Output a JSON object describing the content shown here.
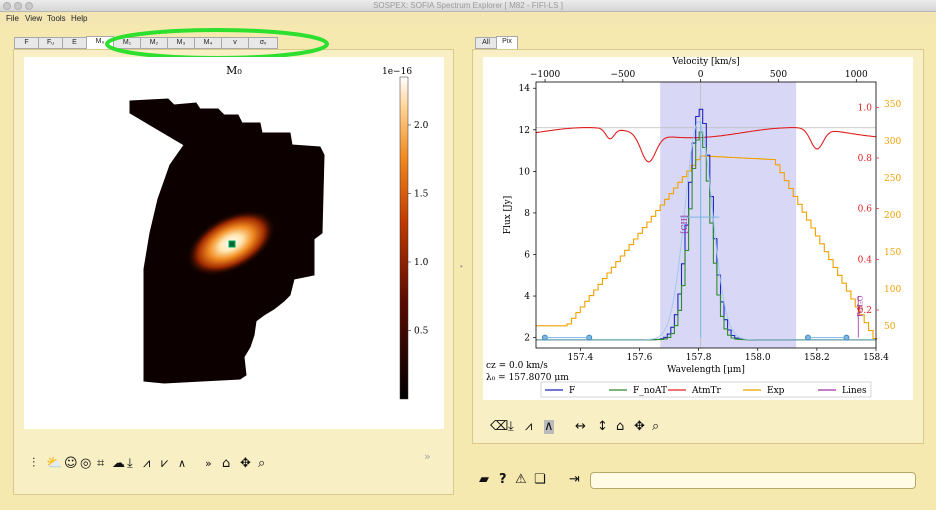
{
  "window": {
    "title": "SOSPEX: SOFIA Spectrum Explorer [ M82 - FIFI-LS ]"
  },
  "menu": [
    "File",
    "View",
    "Tools",
    "Help"
  ],
  "left_tabs": [
    {
      "label": "F",
      "active": false
    },
    {
      "label": "Fᵤ",
      "active": false
    },
    {
      "label": "E",
      "active": false
    },
    {
      "label": "M₀",
      "active": true
    },
    {
      "label": "M₁",
      "active": false
    },
    {
      "label": "M₂",
      "active": false
    },
    {
      "label": "M₃",
      "active": false
    },
    {
      "label": "M₄",
      "active": false
    },
    {
      "label": "v",
      "active": false
    },
    {
      "label": "σᵥ",
      "active": false
    }
  ],
  "right_tabs": [
    {
      "label": "All",
      "active": false
    },
    {
      "label": "Pix",
      "active": true
    }
  ],
  "image_panel": {
    "title": "M₀",
    "scale_note": "1e−16",
    "colorbar_ticks": [
      "2.0",
      "1.5",
      "1.0",
      "0.5"
    ],
    "colorbar_values": [
      2.0,
      1.5,
      1.0,
      0.5
    ],
    "colorbar_range": [
      0.0,
      2.35
    ],
    "more_label": "»"
  },
  "left_toolbar": [
    "levels-icon",
    "contour-cloud-icon",
    "smiley-icon",
    "fingerprint-icon",
    "crop-icon",
    "cloud-icon",
    "download-icon",
    "fit-icon",
    "fit-alt-icon",
    "more-icon",
    "home-icon",
    "pan-icon",
    "zoom-icon"
  ],
  "spectrum": {
    "top_axis_label": "Velocity [km/s]",
    "top_ticks": [
      "−1000",
      "−500",
      "0",
      "500",
      "1000"
    ],
    "top_tick_values": [
      -1000,
      -500,
      0,
      500,
      1000
    ],
    "x_label": "Wavelength [μm]",
    "x_ticks": [
      "157.4",
      "157.6",
      "157.8",
      "158.0",
      "158.2",
      "158.4"
    ],
    "x_tick_values": [
      157.4,
      157.6,
      157.8,
      158.0,
      158.2,
      158.4
    ],
    "xlim": [
      157.25,
      158.4
    ],
    "y_label": "Flux [Jy]",
    "y_ticks": [
      "2",
      "4",
      "6",
      "8",
      "10",
      "12",
      "14"
    ],
    "y_tick_values": [
      2,
      4,
      6,
      8,
      10,
      12,
      14
    ],
    "ylim": [
      1.5,
      14.3
    ],
    "right1_ticks": [
      "0.2",
      "0.4",
      "0.6",
      "0.8",
      "1.0"
    ],
    "right1_values": [
      0.2,
      0.4,
      0.6,
      0.8,
      1.0
    ],
    "right1_lim": [
      0.05,
      1.1
    ],
    "right2_ticks": [
      "50",
      "100",
      "150",
      "200",
      "250",
      "300",
      "350"
    ],
    "right2_values": [
      50,
      100,
      150,
      200,
      250,
      300,
      350
    ],
    "right2_lim": [
      20,
      380
    ],
    "line_label": "[CII]",
    "line_label_2": "P-H₂O",
    "cz_text": "cz = 0.0 km/s",
    "lambda_text": "λ₀ = 157.8070 μm",
    "legend": [
      {
        "label": "F",
        "color": "#1f22c8"
      },
      {
        "label": "F_noAT",
        "color": "#2e8b2e"
      },
      {
        "label": "AtmTr",
        "color": "#e02020"
      },
      {
        "label": "Exp",
        "color": "#f0a000"
      },
      {
        "label": "Lines",
        "color": "#a030a0"
      }
    ]
  },
  "right_toolbar": [
    "eraser-icon",
    "download-icon",
    "fit-icon",
    "fit-select-icon",
    "h-arrows-icon",
    "v-arrows-icon",
    "home-icon",
    "pan-icon",
    "zoom-icon"
  ],
  "bottom_toolbar": [
    "folder-icon",
    "question-icon",
    "warning-icon",
    "layers-icon",
    "exit-icon"
  ],
  "command_input": {
    "value": ""
  },
  "colors": {
    "panel": "#f8efc4",
    "window": "#f6e9b0",
    "highlight": "#2ee02e",
    "span": "#d8d8f6"
  }
}
